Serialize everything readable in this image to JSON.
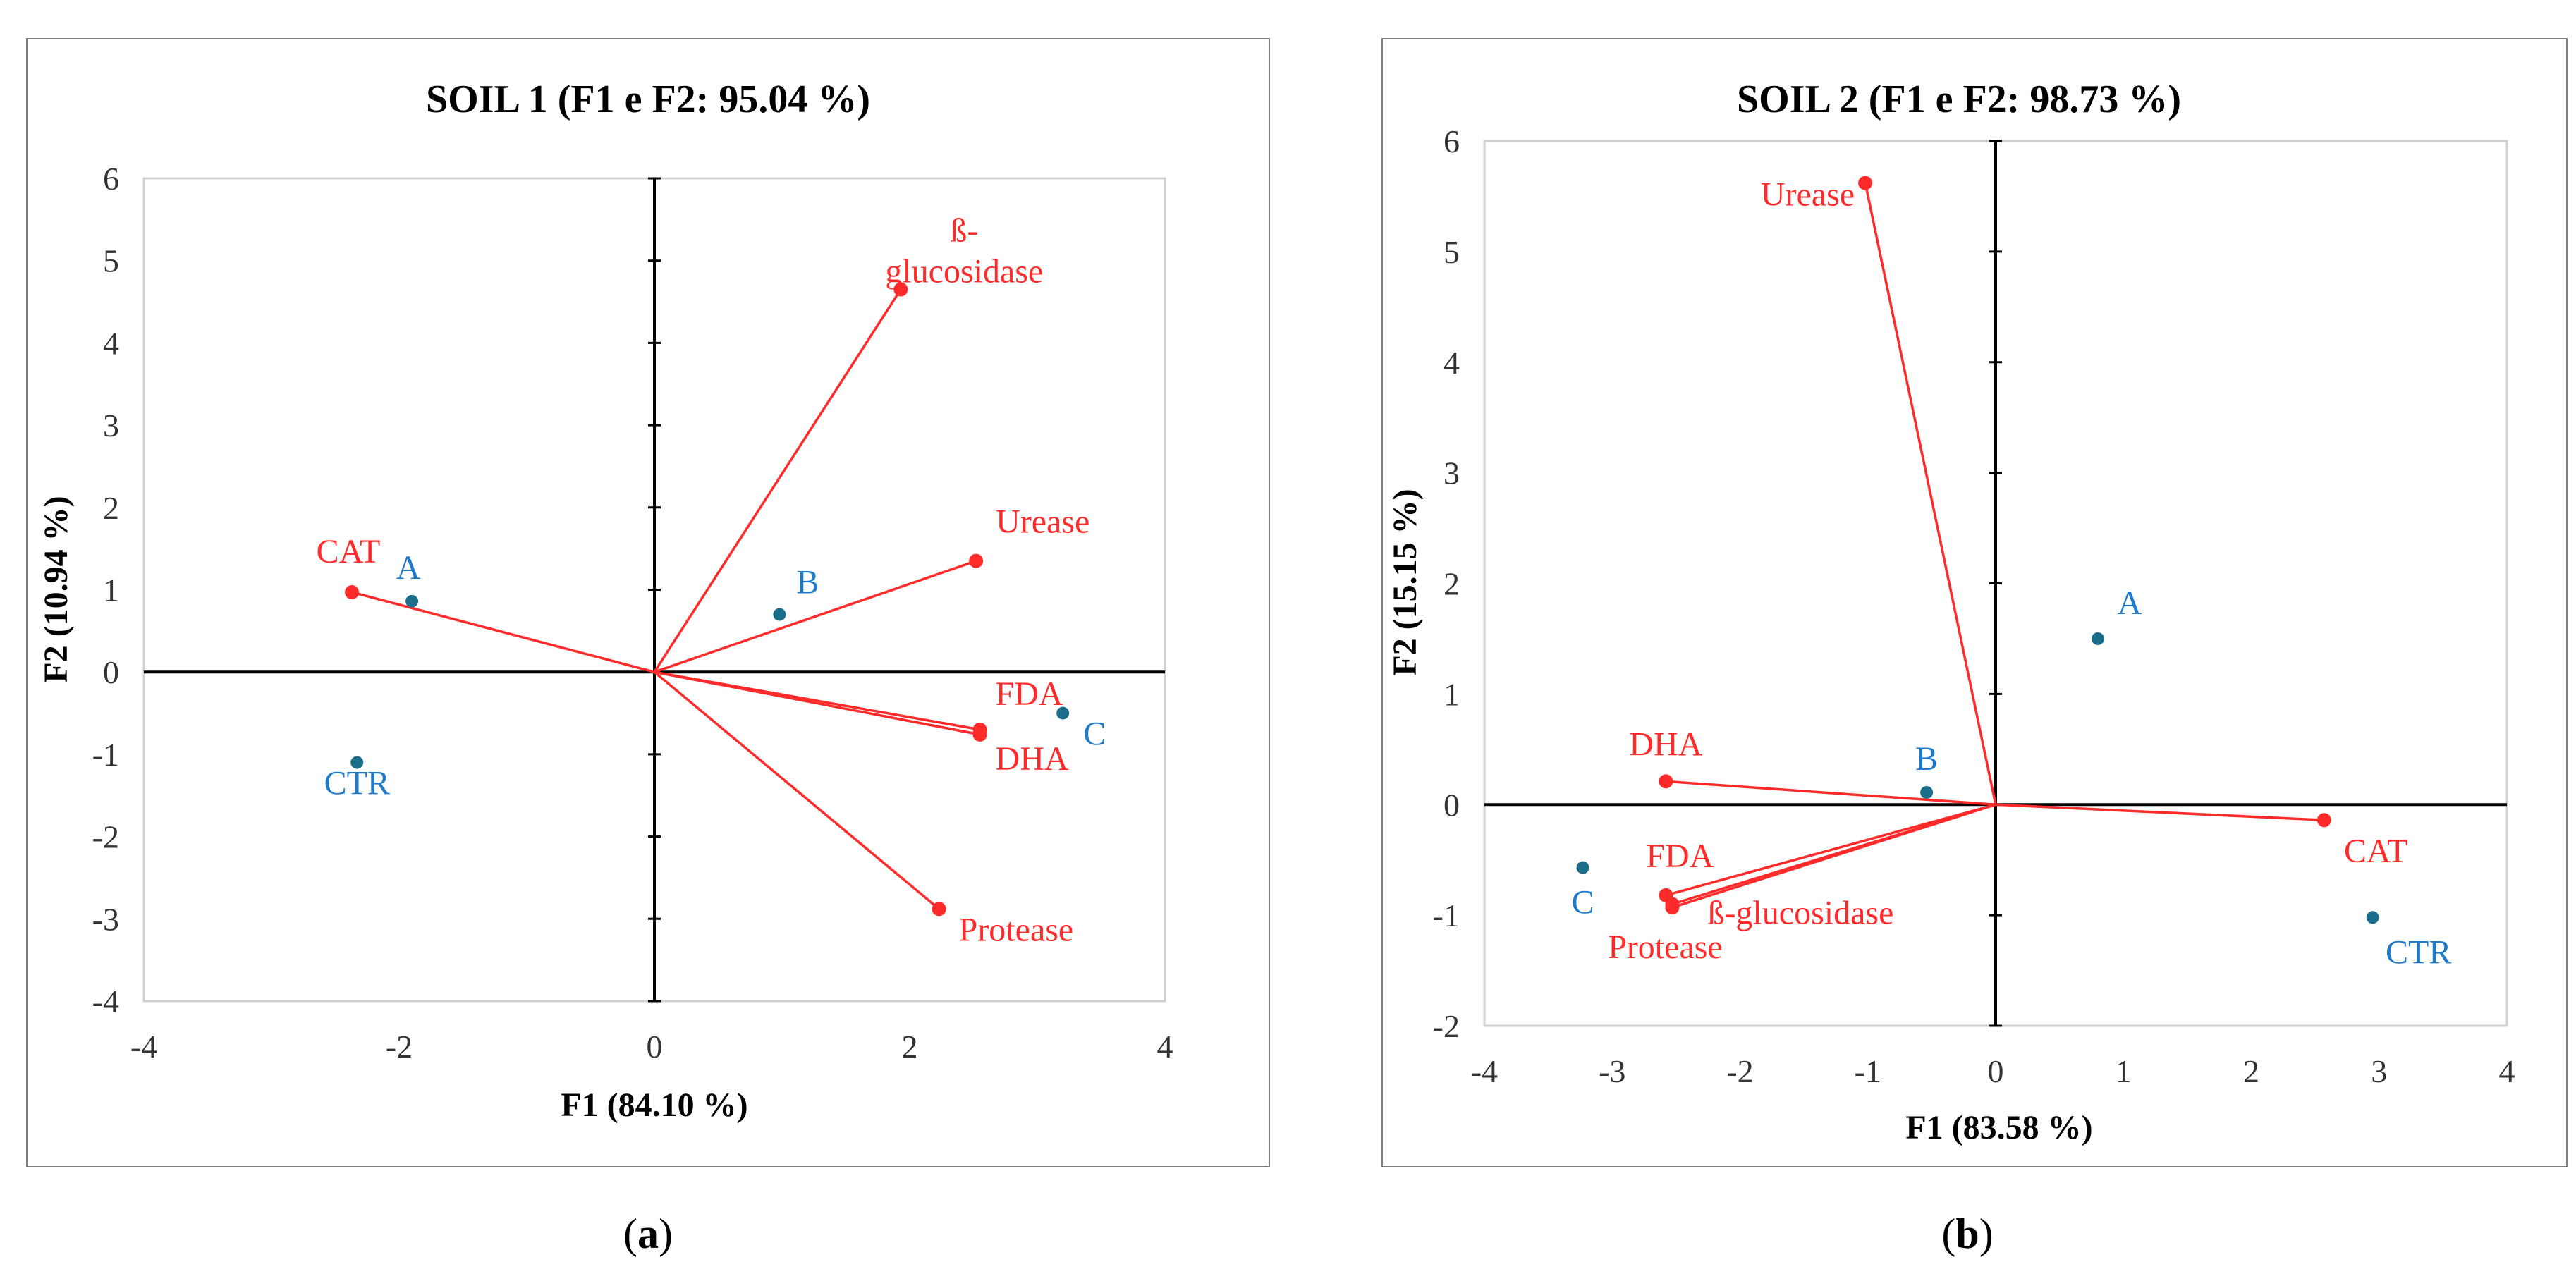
{
  "figure": {
    "captions": [
      {
        "open": "(",
        "letter": "a",
        "close": ")"
      },
      {
        "open": "(",
        "letter": "b",
        "close": ")"
      }
    ]
  },
  "chart_data": [
    {
      "type": "scatter",
      "subtype": "pca-biplot",
      "title": "SOIL 1 (F1 e F2: 95.04 %)",
      "xlabel": "F1 (84.10 %)",
      "ylabel": "F2 (10.94 %)",
      "xlim": [
        -4,
        4
      ],
      "ylim": [
        -4,
        6
      ],
      "xticks": [
        -4,
        -2,
        0,
        2,
        4
      ],
      "yticks": [
        -4,
        -3,
        -2,
        -1,
        0,
        1,
        2,
        3,
        4,
        5,
        6
      ],
      "vectors": [
        {
          "name": "ß-glucosidase",
          "lines": [
            "ß-",
            "glucosidase"
          ],
          "x": 1.93,
          "y": 4.65,
          "label_anchor": "start"
        },
        {
          "name": "Urease",
          "lines": [
            "Urease"
          ],
          "x": 2.52,
          "y": 1.35,
          "label_anchor": "start"
        },
        {
          "name": "CAT",
          "lines": [
            "CAT"
          ],
          "x": -2.37,
          "y": 0.97,
          "label_anchor": "middle"
        },
        {
          "name": "FDA",
          "lines": [
            "FDA"
          ],
          "x": 2.55,
          "y": -0.7,
          "label_anchor": "start"
        },
        {
          "name": "DHA",
          "lines": [
            "DHA"
          ],
          "x": 2.55,
          "y": -0.76,
          "label_anchor": "start"
        },
        {
          "name": "Protease",
          "lines": [
            "Protease"
          ],
          "x": 2.23,
          "y": -2.88,
          "label_anchor": "start"
        }
      ],
      "observations": [
        {
          "name": "A",
          "x": -1.9,
          "y": 0.86
        },
        {
          "name": "B",
          "x": 0.98,
          "y": 0.7
        },
        {
          "name": "C",
          "x": 3.2,
          "y": -0.5
        },
        {
          "name": "CTR",
          "x": -2.33,
          "y": -1.1
        }
      ]
    },
    {
      "type": "scatter",
      "subtype": "pca-biplot",
      "title": "SOIL 2 (F1 e F2: 98.73 %)",
      "xlabel": "F1 (83.58 %)",
      "ylabel": "F2 (15.15 %)",
      "xlim": [
        -4,
        4
      ],
      "ylim": [
        -2,
        6
      ],
      "xticks": [
        -4,
        -3,
        -2,
        -1,
        0,
        1,
        2,
        3,
        4
      ],
      "yticks": [
        -2,
        -1,
        0,
        1,
        2,
        3,
        4,
        5,
        6
      ],
      "vectors": [
        {
          "name": "Urease",
          "lines": [
            "Urease"
          ],
          "x": -1.02,
          "y": 5.62,
          "label_anchor": "end"
        },
        {
          "name": "DHA",
          "lines": [
            "DHA"
          ],
          "x": -2.58,
          "y": 0.21,
          "label_anchor": "middle"
        },
        {
          "name": "FDA",
          "lines": [
            "FDA"
          ],
          "x": -2.58,
          "y": -0.82,
          "label_anchor": "middle"
        },
        {
          "name": "ß-glucosidase",
          "lines": [
            "ß-glucosidase"
          ],
          "x": -2.53,
          "y": -0.9,
          "label_anchor": "start"
        },
        {
          "name": "Protease",
          "lines": [
            "Protease"
          ],
          "x": -2.53,
          "y": -0.93,
          "label_anchor": "middle"
        },
        {
          "name": "CAT",
          "lines": [
            "CAT"
          ],
          "x": 2.57,
          "y": -0.14,
          "label_anchor": "start"
        }
      ],
      "observations": [
        {
          "name": "A",
          "x": 0.8,
          "y": 1.5
        },
        {
          "name": "B",
          "x": -0.54,
          "y": 0.11
        },
        {
          "name": "C",
          "x": -3.23,
          "y": -0.57
        },
        {
          "name": "CTR",
          "x": 2.95,
          "y": -1.02
        }
      ]
    }
  ]
}
